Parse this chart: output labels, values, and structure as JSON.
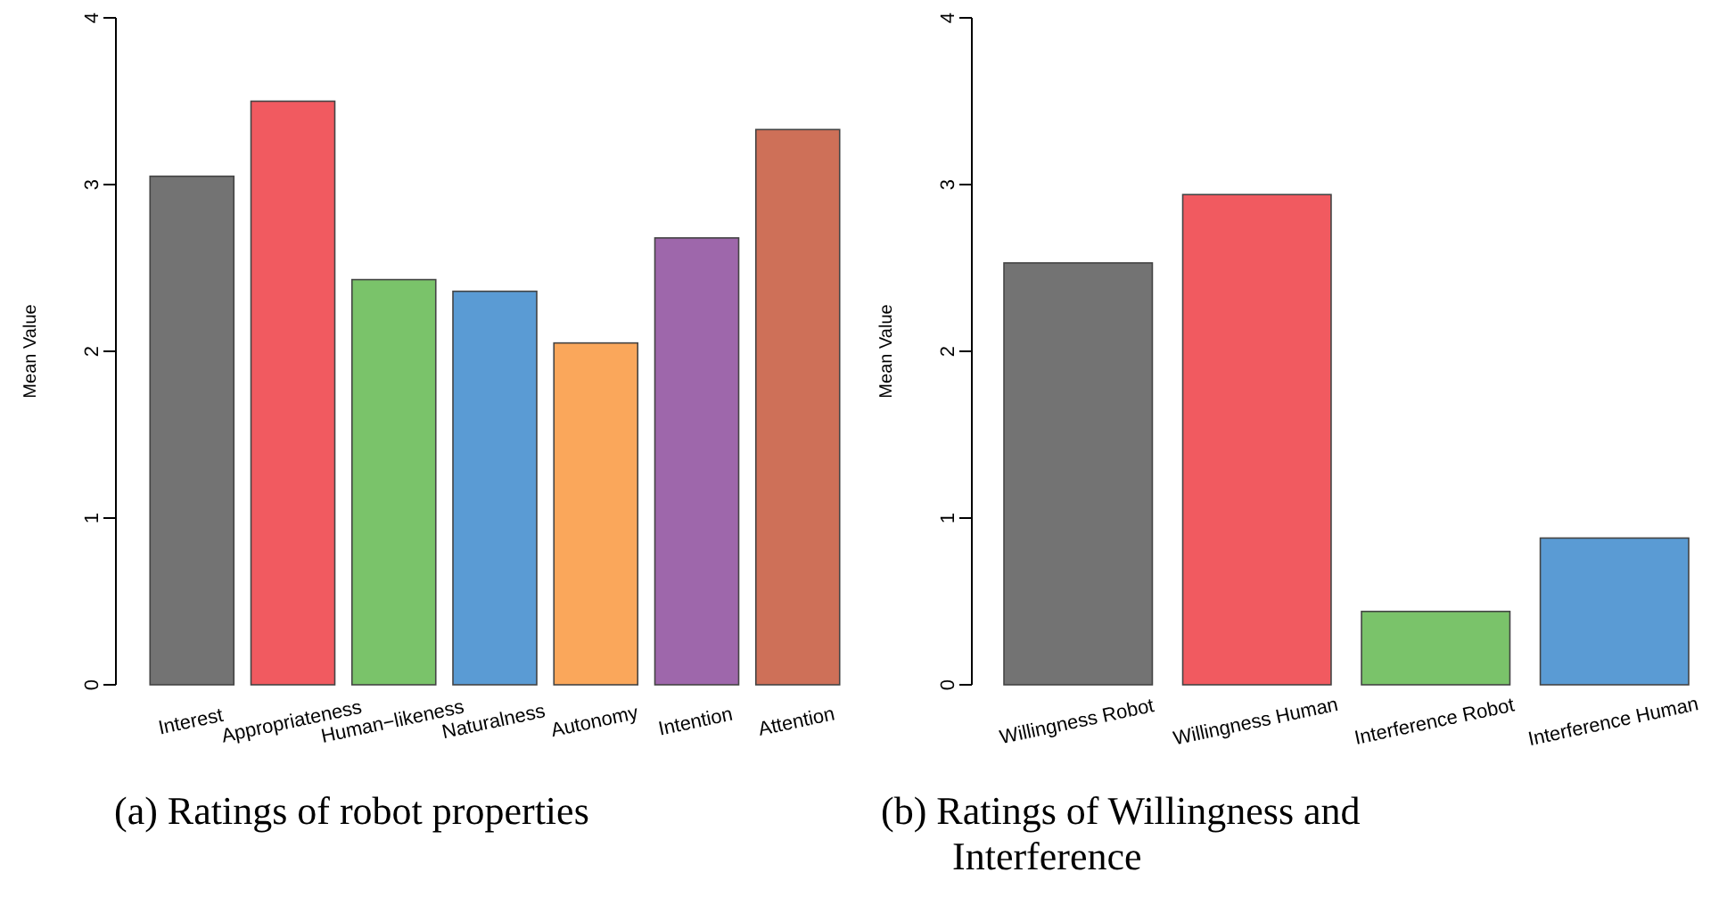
{
  "chart_data": [
    {
      "type": "bar",
      "ylabel": "Mean Value",
      "categories": [
        "Interest",
        "Appropriateness",
        "Human−likeness",
        "Naturalness",
        "Autonomy",
        "Intention",
        "Attention"
      ],
      "values": [
        3.05,
        3.5,
        2.43,
        2.36,
        2.05,
        2.68,
        3.33
      ],
      "colors": [
        "#737373",
        "#f15a60",
        "#7ac36a",
        "#5a9bd4",
        "#faa75b",
        "#9e67ab",
        "#ce7058"
      ],
      "ylim": [
        0,
        4
      ],
      "yticks": [
        0,
        1,
        2,
        3,
        4
      ],
      "annotations": [
        "(a) Ratings of robot properties"
      ]
    },
    {
      "type": "bar",
      "ylabel": "Mean Value",
      "categories": [
        "Willingness Robot",
        "Willingness Human",
        "Interference Robot",
        "Interference Human"
      ],
      "values": [
        2.53,
        2.94,
        0.44,
        0.88
      ],
      "colors": [
        "#737373",
        "#f15a60",
        "#7ac36a",
        "#5a9bd4"
      ],
      "ylim": [
        0,
        4
      ],
      "yticks": [
        0,
        1,
        2,
        3,
        4
      ],
      "annotations": [
        "(b) Ratings of Willingness and Interference"
      ]
    }
  ]
}
